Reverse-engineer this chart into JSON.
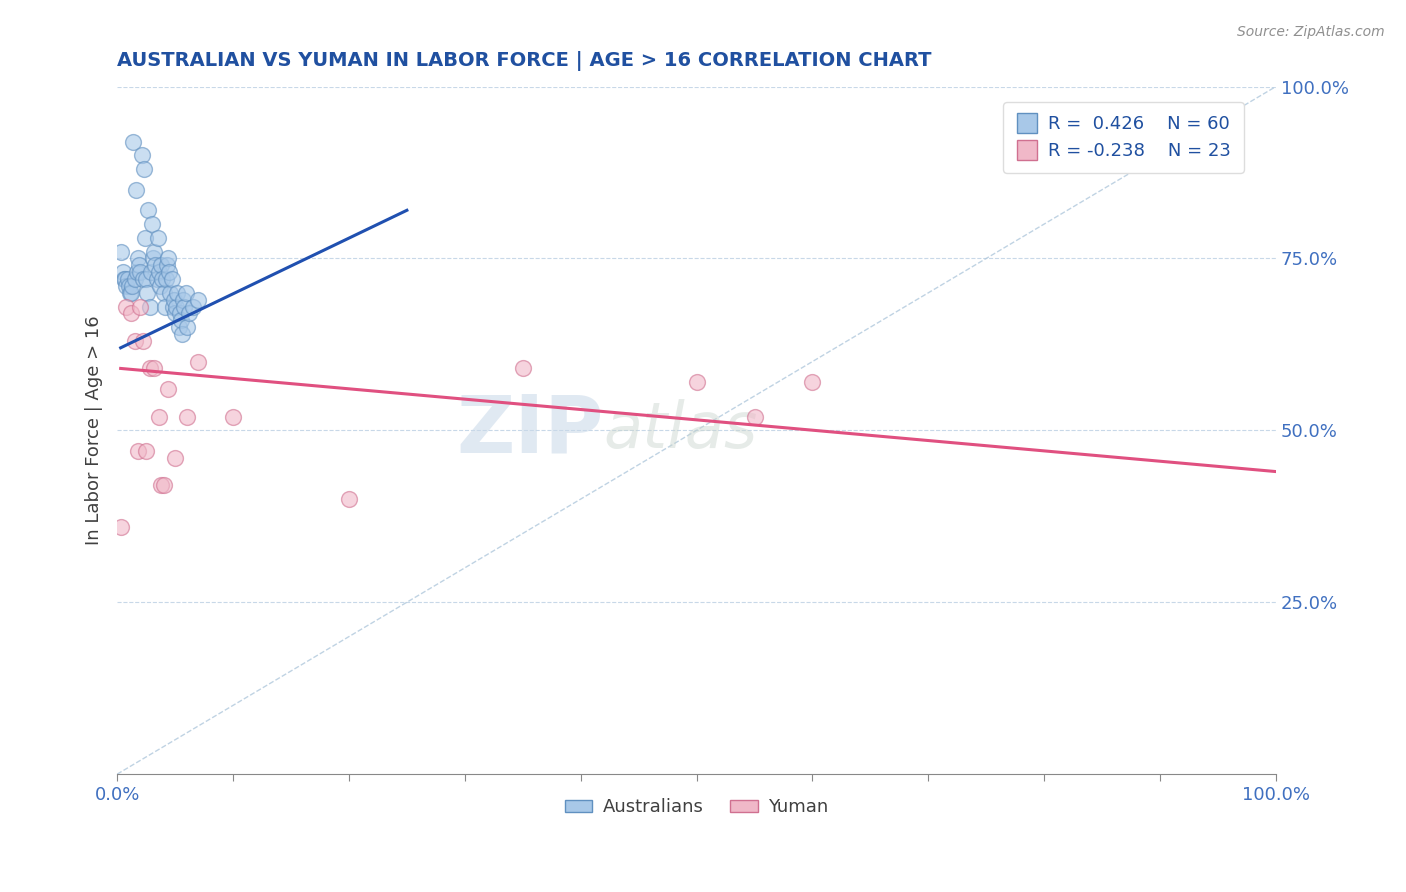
{
  "title": "AUSTRALIAN VS YUMAN IN LABOR FORCE | AGE > 16 CORRELATION CHART",
  "source_text": "Source: ZipAtlas.com",
  "ylabel": "In Labor Force | Age > 16",
  "xlim": [
    0.0,
    1.0
  ],
  "ylim": [
    0.0,
    1.0
  ],
  "blue_color": "#a8c8e8",
  "blue_edge": "#6090c0",
  "pink_color": "#f0b8c8",
  "pink_edge": "#d07090",
  "blue_line_color": "#2050b0",
  "pink_line_color": "#e05080",
  "ref_line_color": "#b0c8dc",
  "legend_r_blue": "0.426",
  "legend_n_blue": "60",
  "legend_r_pink": "-0.238",
  "legend_n_pink": "23",
  "legend_label_aus": "Australians",
  "legend_label_yuman": "Yuman",
  "watermark_zip": "ZIP",
  "watermark_atlas": "atlas",
  "title_color": "#2050a0",
  "source_color": "#909090",
  "axis_label_color": "#404040",
  "tick_label_color": "#4070c0",
  "legend_text_color": "#2050a0",
  "grid_color": "#c8d8e8",
  "background_color": "#ffffff",
  "australians_x": [
    0.003,
    0.005,
    0.006,
    0.007,
    0.008,
    0.009,
    0.01,
    0.011,
    0.012,
    0.013,
    0.014,
    0.015,
    0.016,
    0.017,
    0.018,
    0.019,
    0.02,
    0.021,
    0.022,
    0.023,
    0.024,
    0.025,
    0.026,
    0.027,
    0.028,
    0.029,
    0.03,
    0.031,
    0.032,
    0.033,
    0.034,
    0.035,
    0.036,
    0.037,
    0.038,
    0.039,
    0.04,
    0.041,
    0.042,
    0.043,
    0.044,
    0.045,
    0.046,
    0.047,
    0.048,
    0.049,
    0.05,
    0.051,
    0.052,
    0.053,
    0.054,
    0.055,
    0.056,
    0.057,
    0.058,
    0.059,
    0.06,
    0.062,
    0.065,
    0.07
  ],
  "australians_y": [
    0.76,
    0.73,
    0.72,
    0.72,
    0.71,
    0.72,
    0.71,
    0.7,
    0.7,
    0.71,
    0.92,
    0.72,
    0.85,
    0.73,
    0.75,
    0.74,
    0.73,
    0.9,
    0.72,
    0.88,
    0.78,
    0.72,
    0.7,
    0.82,
    0.68,
    0.73,
    0.8,
    0.75,
    0.76,
    0.74,
    0.72,
    0.78,
    0.73,
    0.71,
    0.74,
    0.72,
    0.7,
    0.68,
    0.72,
    0.74,
    0.75,
    0.73,
    0.7,
    0.72,
    0.68,
    0.69,
    0.67,
    0.68,
    0.7,
    0.65,
    0.67,
    0.66,
    0.64,
    0.69,
    0.68,
    0.7,
    0.65,
    0.67,
    0.68,
    0.69
  ],
  "yuman_x": [
    0.003,
    0.008,
    0.012,
    0.015,
    0.018,
    0.02,
    0.022,
    0.025,
    0.028,
    0.032,
    0.036,
    0.038,
    0.04,
    0.044,
    0.05,
    0.06,
    0.07,
    0.1,
    0.2,
    0.35,
    0.5,
    0.55,
    0.6
  ],
  "yuman_y": [
    0.36,
    0.68,
    0.67,
    0.63,
    0.47,
    0.68,
    0.63,
    0.47,
    0.59,
    0.59,
    0.52,
    0.42,
    0.42,
    0.56,
    0.46,
    0.52,
    0.6,
    0.52,
    0.4,
    0.59,
    0.57,
    0.52,
    0.57
  ],
  "blue_trend_x": [
    0.003,
    0.25
  ],
  "blue_trend_y": [
    0.62,
    0.82
  ],
  "pink_trend_x": [
    0.003,
    1.0
  ],
  "pink_trend_y": [
    0.59,
    0.44
  ],
  "ref_line_x": [
    0.0,
    1.0
  ],
  "ref_line_y": [
    0.0,
    1.0
  ],
  "xtick_positions": [
    0.0,
    0.1,
    0.2,
    0.3,
    0.4,
    0.5,
    0.6,
    0.7,
    0.8,
    0.9,
    1.0
  ]
}
